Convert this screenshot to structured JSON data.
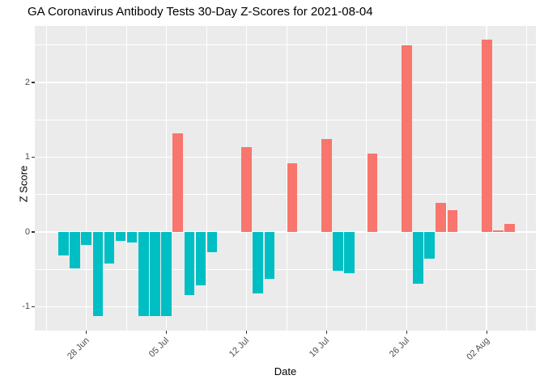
{
  "chart_data": {
    "type": "bar",
    "title": "GA Coronavirus Antibody Tests 30-Day Z-Scores for 2021-08-04",
    "xlabel": "Date",
    "ylabel": "Z Score",
    "legend": "none",
    "grid": "on",
    "ylim": [
      -1.31,
      2.76
    ],
    "y_major_ticks": [
      2,
      1,
      0,
      -1
    ],
    "y_tick_labels": [
      "2",
      "1",
      "0",
      "-1"
    ],
    "y_minor_ticks": [
      2.5,
      1.5,
      0.5,
      -0.5
    ],
    "x_ticks": [
      {
        "label": "28 Jun",
        "date": "2021-06-28"
      },
      {
        "label": "05 Jul",
        "date": "2021-07-05"
      },
      {
        "label": "12 Jul",
        "date": "2021-07-12"
      },
      {
        "label": "19 Jul",
        "date": "2021-07-19"
      },
      {
        "label": "26 Jul",
        "date": "2021-07-26"
      },
      {
        "label": "02 Aug",
        "date": "2021-08-02"
      }
    ],
    "colors": {
      "positive_bar": "#F8766D",
      "negative_bar": "#00BFC4",
      "panel_background": "#EBEBEB",
      "gridline": "#FFFFFF",
      "tick_text": "#4D4D4D",
      "title_text": "#000000"
    },
    "bars": [
      {
        "date": "2021-06-26",
        "value": -0.31
      },
      {
        "date": "2021-06-27",
        "value": -0.49
      },
      {
        "date": "2021-06-28",
        "value": -0.17
      },
      {
        "date": "2021-06-29",
        "value": -1.12
      },
      {
        "date": "2021-06-30",
        "value": -0.42
      },
      {
        "date": "2021-07-01",
        "value": -0.12
      },
      {
        "date": "2021-07-02",
        "value": -0.14
      },
      {
        "date": "2021-07-03",
        "value": -1.12
      },
      {
        "date": "2021-07-04",
        "value": -1.12
      },
      {
        "date": "2021-07-05",
        "value": -1.12
      },
      {
        "date": "2021-07-06",
        "value": 1.32
      },
      {
        "date": "2021-07-07",
        "value": -0.84
      },
      {
        "date": "2021-07-08",
        "value": -0.71
      },
      {
        "date": "2021-07-09",
        "value": -0.27
      },
      {
        "date": "2021-07-12",
        "value": 1.13
      },
      {
        "date": "2021-07-13",
        "value": -0.82
      },
      {
        "date": "2021-07-14",
        "value": -0.63
      },
      {
        "date": "2021-07-16",
        "value": 0.92
      },
      {
        "date": "2021-07-19",
        "value": 1.24
      },
      {
        "date": "2021-07-20",
        "value": -0.52
      },
      {
        "date": "2021-07-21",
        "value": -0.55
      },
      {
        "date": "2021-07-23",
        "value": 1.05
      },
      {
        "date": "2021-07-26",
        "value": 2.5
      },
      {
        "date": "2021-07-27",
        "value": -0.69
      },
      {
        "date": "2021-07-28",
        "value": -0.36
      },
      {
        "date": "2021-07-29",
        "value": 0.39
      },
      {
        "date": "2021-07-30",
        "value": 0.29
      },
      {
        "date": "2021-08-02",
        "value": 2.57
      },
      {
        "date": "2021-08-03",
        "value": 0.02
      },
      {
        "date": "2021-08-04",
        "value": 0.11
      }
    ]
  }
}
